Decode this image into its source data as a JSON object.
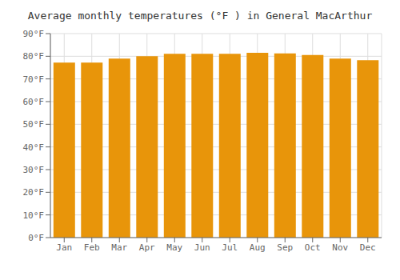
{
  "chart_data": {
    "type": "bar",
    "title": "Average monthly temperatures (°F ) in General MacArthur",
    "categories": [
      "Jan",
      "Feb",
      "Mar",
      "Apr",
      "May",
      "Jun",
      "Jul",
      "Aug",
      "Sep",
      "Oct",
      "Nov",
      "Dec"
    ],
    "values": [
      77.2,
      77.2,
      79.0,
      80.0,
      81.1,
      81.1,
      81.1,
      81.5,
      81.3,
      80.6,
      79.0,
      78.3
    ],
    "color": "#E8950A",
    "ylim": [
      0,
      90
    ],
    "yticks": [
      {
        "value": 0,
        "label": "0°F"
      },
      {
        "value": 10,
        "label": "10°F"
      },
      {
        "value": 20,
        "label": "20°F"
      },
      {
        "value": 30,
        "label": "30°F"
      },
      {
        "value": 40,
        "label": "40°F"
      },
      {
        "value": 50,
        "label": "50°F"
      },
      {
        "value": 60,
        "label": "60°F"
      },
      {
        "value": 70,
        "label": "70°F"
      },
      {
        "value": 80,
        "label": "80°F"
      },
      {
        "value": 90,
        "label": "90°F"
      }
    ],
    "grid": true
  }
}
